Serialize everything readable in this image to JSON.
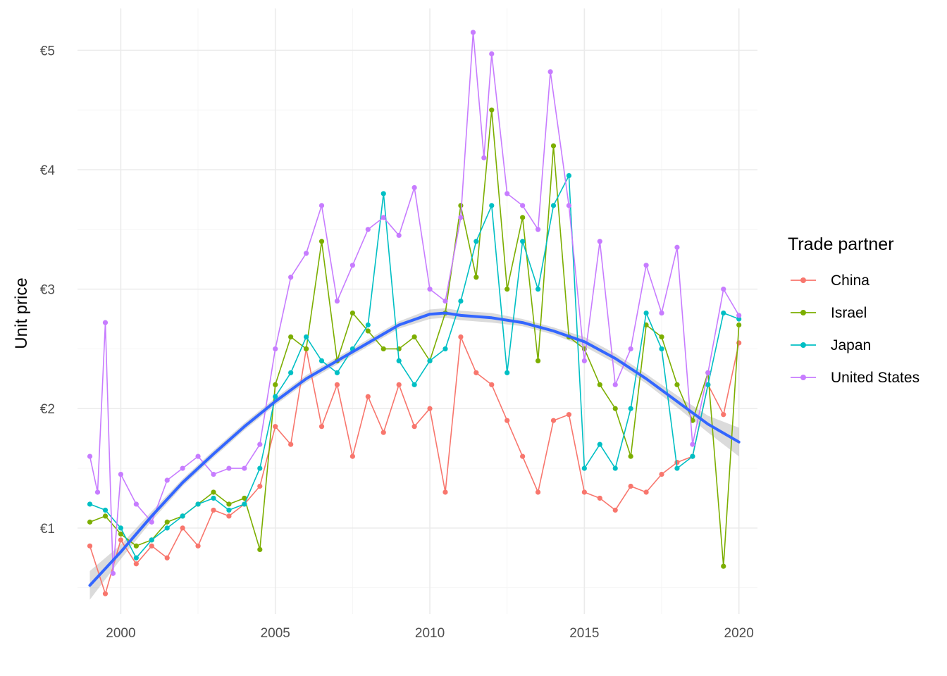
{
  "chart_data": {
    "type": "line",
    "title": "",
    "xlabel": "",
    "ylabel": "Unit price",
    "xlim": [
      1998.6,
      2020.6
    ],
    "ylim": [
      0.28,
      5.35
    ],
    "x_ticks": [
      2000,
      2005,
      2010,
      2015,
      2020
    ],
    "x_tick_labels": [
      "2000",
      "2005",
      "2010",
      "2015",
      "2020"
    ],
    "y_ticks": [
      1,
      2,
      3,
      4,
      5
    ],
    "y_tick_labels": [
      "€1",
      "€2",
      "€3",
      "€4",
      "€5"
    ],
    "grid": true,
    "legend": {
      "title": "Trade partner",
      "placement": "right",
      "entries": [
        "China",
        "Israel",
        "Japan",
        "United States"
      ]
    },
    "series": [
      {
        "name": "China",
        "color": "#F8766D",
        "x": [
          1999.0,
          1999.5,
          2000.0,
          2000.5,
          2001.0,
          2001.5,
          2002.0,
          2002.5,
          2003.0,
          2003.5,
          2004.0,
          2004.5,
          2005.0,
          2005.5,
          2006.0,
          2006.5,
          2007.0,
          2007.5,
          2008.0,
          2008.5,
          2009.0,
          2009.5,
          2010.0,
          2010.5,
          2011.0,
          2011.5,
          2012.0,
          2012.5,
          2013.0,
          2013.5,
          2014.0,
          2014.5,
          2015.0,
          2015.5,
          2016.0,
          2016.5,
          2017.0,
          2017.5,
          2018.0,
          2018.5,
          2019.0,
          2019.5,
          2020.0
        ],
        "values": [
          0.85,
          0.45,
          0.9,
          0.7,
          0.85,
          0.75,
          1.0,
          0.85,
          1.15,
          1.1,
          1.2,
          1.35,
          1.85,
          1.7,
          2.5,
          1.85,
          2.2,
          1.6,
          2.1,
          1.8,
          2.2,
          1.85,
          2.0,
          1.3,
          2.6,
          2.3,
          2.2,
          1.9,
          1.6,
          1.3,
          1.9,
          1.95,
          1.3,
          1.25,
          1.15,
          1.35,
          1.3,
          1.45,
          1.55,
          1.6,
          2.2,
          1.95,
          2.55
        ]
      },
      {
        "name": "Israel",
        "color": "#7CAE00",
        "x": [
          1999.0,
          1999.5,
          2000.0,
          2000.5,
          2001.0,
          2001.5,
          2002.0,
          2002.5,
          2003.0,
          2003.5,
          2004.0,
          2004.5,
          2005.0,
          2005.5,
          2006.0,
          2006.5,
          2007.0,
          2007.5,
          2008.0,
          2008.5,
          2009.0,
          2009.5,
          2010.0,
          2010.5,
          2011.0,
          2011.5,
          2012.0,
          2012.5,
          2013.0,
          2013.5,
          2014.0,
          2014.5,
          2015.0,
          2015.5,
          2016.0,
          2016.5,
          2017.0,
          2017.5,
          2018.0,
          2018.5,
          2019.0,
          2019.5,
          2020.0
        ],
        "values": [
          1.05,
          1.1,
          0.95,
          0.85,
          0.9,
          1.05,
          1.1,
          1.2,
          1.3,
          1.2,
          1.25,
          0.82,
          2.2,
          2.6,
          2.5,
          3.4,
          2.4,
          2.8,
          2.65,
          2.5,
          2.5,
          2.6,
          2.4,
          2.8,
          3.7,
          3.1,
          4.5,
          3.0,
          3.6,
          2.4,
          4.2,
          2.6,
          2.5,
          2.2,
          2.0,
          1.6,
          2.7,
          2.6,
          2.2,
          1.9,
          2.3,
          0.68,
          2.7
        ]
      },
      {
        "name": "Japan",
        "color": "#00BFC4",
        "x": [
          1999.0,
          1999.5,
          2000.0,
          2000.5,
          2001.0,
          2001.5,
          2002.0,
          2002.5,
          2003.0,
          2003.5,
          2004.0,
          2004.5,
          2005.0,
          2005.5,
          2006.0,
          2006.5,
          2007.0,
          2007.5,
          2008.0,
          2008.5,
          2009.0,
          2009.5,
          2010.0,
          2010.5,
          2011.0,
          2011.5,
          2012.0,
          2012.5,
          2013.0,
          2013.5,
          2014.0,
          2014.5,
          2015.0,
          2015.5,
          2016.0,
          2016.5,
          2017.0,
          2017.5,
          2018.0,
          2018.5,
          2019.0,
          2019.5,
          2020.0
        ],
        "values": [
          1.2,
          1.15,
          1.0,
          0.75,
          0.9,
          1.0,
          1.1,
          1.2,
          1.25,
          1.15,
          1.2,
          1.5,
          2.1,
          2.3,
          2.6,
          2.4,
          2.3,
          2.5,
          2.7,
          3.8,
          2.4,
          2.2,
          2.4,
          2.5,
          2.9,
          3.4,
          3.7,
          2.3,
          3.4,
          3.0,
          3.7,
          3.95,
          1.5,
          1.7,
          1.5,
          2.0,
          2.8,
          2.5,
          1.5,
          1.6,
          2.2,
          2.8,
          2.75
        ]
      },
      {
        "name": "United States",
        "color": "#C77CFF",
        "x": [
          1999.0,
          1999.25,
          1999.5,
          1999.75,
          2000.0,
          2000.5,
          2001.0,
          2001.5,
          2002.0,
          2002.5,
          2003.0,
          2003.5,
          2004.0,
          2004.5,
          2005.0,
          2005.5,
          2006.0,
          2006.5,
          2007.0,
          2007.5,
          2008.0,
          2008.5,
          2009.0,
          2009.5,
          2010.0,
          2010.5,
          2011.0,
          2011.4,
          2011.75,
          2012.0,
          2012.5,
          2013.0,
          2013.5,
          2013.9,
          2014.5,
          2015.0,
          2015.5,
          2016.0,
          2016.5,
          2017.0,
          2017.5,
          2018.0,
          2018.5,
          2019.0,
          2019.5,
          2020.0
        ],
        "values": [
          1.6,
          1.3,
          2.72,
          0.62,
          1.45,
          1.2,
          1.05,
          1.4,
          1.5,
          1.6,
          1.45,
          1.5,
          1.5,
          1.7,
          2.5,
          3.1,
          3.3,
          3.7,
          2.9,
          3.2,
          3.5,
          3.6,
          3.45,
          3.85,
          3.0,
          2.9,
          3.6,
          5.15,
          4.1,
          4.97,
          3.8,
          3.7,
          3.5,
          4.82,
          3.7,
          2.4,
          3.4,
          2.2,
          2.5,
          3.2,
          2.8,
          3.35,
          1.7,
          2.3,
          3.0,
          2.78
        ]
      }
    ],
    "smooth": {
      "name": "trend",
      "color": "#3366FF",
      "ribbon_color": "#999999",
      "x": [
        1999.0,
        2000.0,
        2001.0,
        2002.0,
        2003.0,
        2004.0,
        2005.0,
        2006.0,
        2007.0,
        2008.0,
        2009.0,
        2010.0,
        2010.5,
        2011.0,
        2012.0,
        2013.0,
        2014.0,
        2015.0,
        2016.0,
        2017.0,
        2018.0,
        2019.0,
        2020.0
      ],
      "values": [
        0.52,
        0.8,
        1.1,
        1.38,
        1.62,
        1.85,
        2.06,
        2.25,
        2.4,
        2.55,
        2.7,
        2.79,
        2.8,
        2.78,
        2.76,
        2.72,
        2.65,
        2.56,
        2.42,
        2.25,
        2.06,
        1.87,
        1.72
      ],
      "lower": [
        0.4,
        0.74,
        1.06,
        1.35,
        1.59,
        1.82,
        2.03,
        2.22,
        2.37,
        2.52,
        2.67,
        2.75,
        2.76,
        2.74,
        2.72,
        2.69,
        2.62,
        2.52,
        2.38,
        2.21,
        2.01,
        1.8,
        1.6
      ],
      "upper": [
        0.64,
        0.86,
        1.14,
        1.41,
        1.65,
        1.88,
        2.09,
        2.28,
        2.43,
        2.58,
        2.73,
        2.83,
        2.84,
        2.82,
        2.8,
        2.75,
        2.68,
        2.6,
        2.46,
        2.29,
        2.11,
        1.94,
        1.84
      ]
    }
  }
}
